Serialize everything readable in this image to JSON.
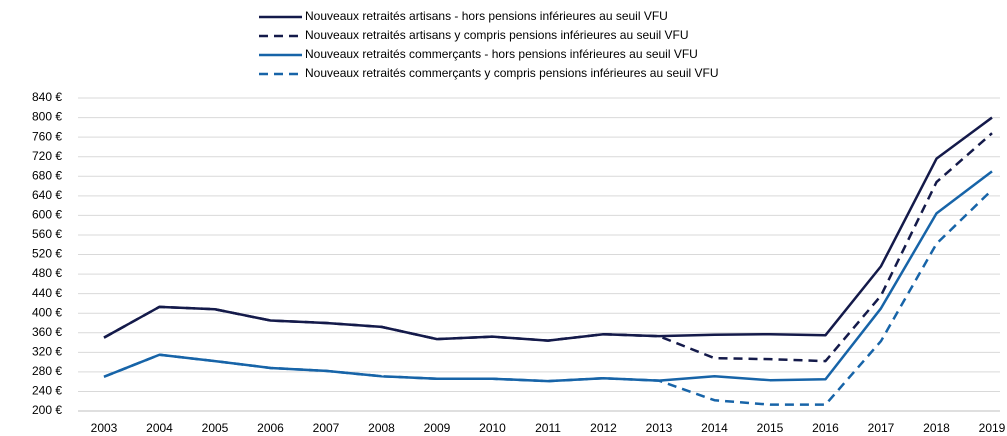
{
  "chart_data": {
    "type": "line",
    "categories": [
      "2003",
      "2004",
      "2005",
      "2006",
      "2007",
      "2008",
      "2009",
      "2010",
      "2011",
      "2012",
      "2013",
      "2014",
      "2015",
      "2016",
      "2017",
      "2018",
      "2019"
    ],
    "series": [
      {
        "name": "Nouveaux retraités artisans - hors pensions inférieures au seuil VFU",
        "color": "#141a4a",
        "dash": false,
        "values": [
          350,
          413,
          408,
          385,
          380,
          372,
          347,
          352,
          344,
          357,
          353,
          356,
          357,
          355,
          496,
          716,
          800
        ]
      },
      {
        "name": "Nouveaux retraités artisans y compris pensions inférieures au seuil VFU",
        "color": "#141a4a",
        "dash": true,
        "values": [
          350,
          413,
          408,
          385,
          380,
          372,
          347,
          352,
          344,
          357,
          353,
          308,
          306,
          302,
          436,
          668,
          768
        ]
      },
      {
        "name": "Nouveaux retraités commerçants - hors pensions inférieures au seuil VFU",
        "color": "#1764a8",
        "dash": false,
        "values": [
          270,
          315,
          302,
          288,
          282,
          271,
          266,
          266,
          261,
          267,
          262,
          271,
          263,
          265,
          410,
          604,
          690
        ]
      },
      {
        "name": "Nouveaux retraités commerçants y compris pensions inférieures au seuil VFU",
        "color": "#1764a8",
        "dash": true,
        "values": [
          270,
          315,
          302,
          288,
          282,
          271,
          266,
          266,
          261,
          267,
          262,
          222,
          213,
          213,
          343,
          542,
          652
        ]
      }
    ],
    "ylim": [
      200,
      840
    ],
    "yticks": [
      {
        "value": 200,
        "label": "200 €"
      },
      {
        "value": 240,
        "label": "240 €"
      },
      {
        "value": 280,
        "label": "280 €"
      },
      {
        "value": 320,
        "label": "320 €"
      },
      {
        "value": 360,
        "label": "360 €"
      },
      {
        "value": 400,
        "label": "400 €"
      },
      {
        "value": 440,
        "label": "440 €"
      },
      {
        "value": 480,
        "label": "480 €"
      },
      {
        "value": 520,
        "label": "520 €"
      },
      {
        "value": 560,
        "label": "560 €"
      },
      {
        "value": 600,
        "label": "600 €"
      },
      {
        "value": 640,
        "label": "640 €"
      },
      {
        "value": 680,
        "label": "680 €"
      },
      {
        "value": 720,
        "label": "720 €"
      },
      {
        "value": 760,
        "label": "760 €"
      },
      {
        "value": 800,
        "label": "800 €"
      },
      {
        "value": 840,
        "label": "840 €"
      }
    ],
    "grid": true,
    "legend": "top"
  }
}
